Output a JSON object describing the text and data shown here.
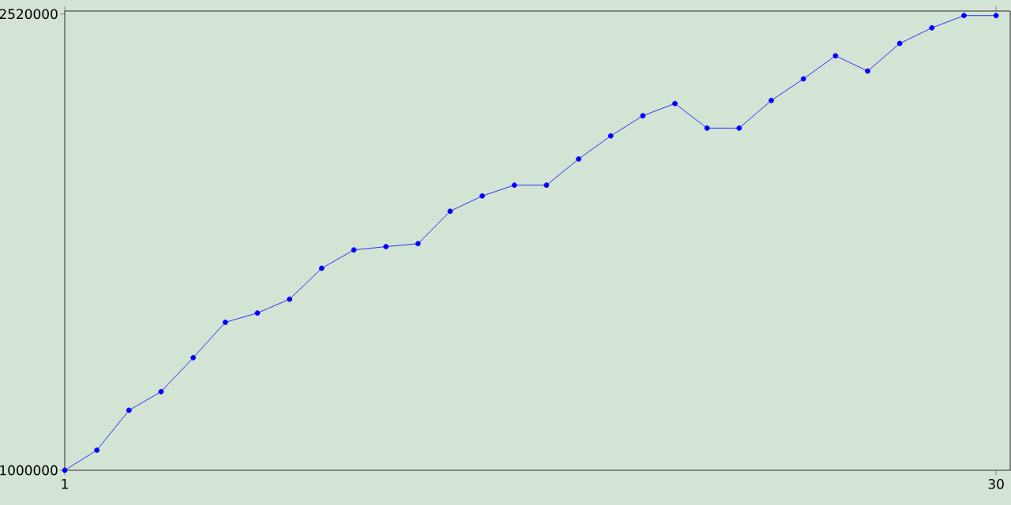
{
  "chart_data": {
    "type": "line",
    "x": [
      1,
      2,
      3,
      4,
      5,
      6,
      7,
      8,
      9,
      10,
      11,
      12,
      13,
      14,
      15,
      16,
      17,
      18,
      19,
      20,
      21,
      22,
      23,
      24,
      25,
      26,
      27,
      28,
      29,
      30
    ],
    "series": [
      {
        "color": "#0000ff",
        "values": [
          1000000,
          1067000,
          1200000,
          1262000,
          1375000,
          1493000,
          1524000,
          1570000,
          1673000,
          1734000,
          1745000,
          1755000,
          1863000,
          1914000,
          1950000,
          1950000,
          2037000,
          2114000,
          2181000,
          2222000,
          2140000,
          2140000,
          2232000,
          2304000,
          2381000,
          2330000,
          2422000,
          2474000,
          2515000,
          2515000
        ]
      }
    ],
    "xlim": [
      1,
      30.44
    ],
    "ylim": [
      1000000,
      2530000
    ],
    "xticks": [
      1,
      30
    ],
    "yticks": [
      1000000,
      2520000
    ],
    "grid": false,
    "marker": "circle",
    "line_style": "solid"
  }
}
